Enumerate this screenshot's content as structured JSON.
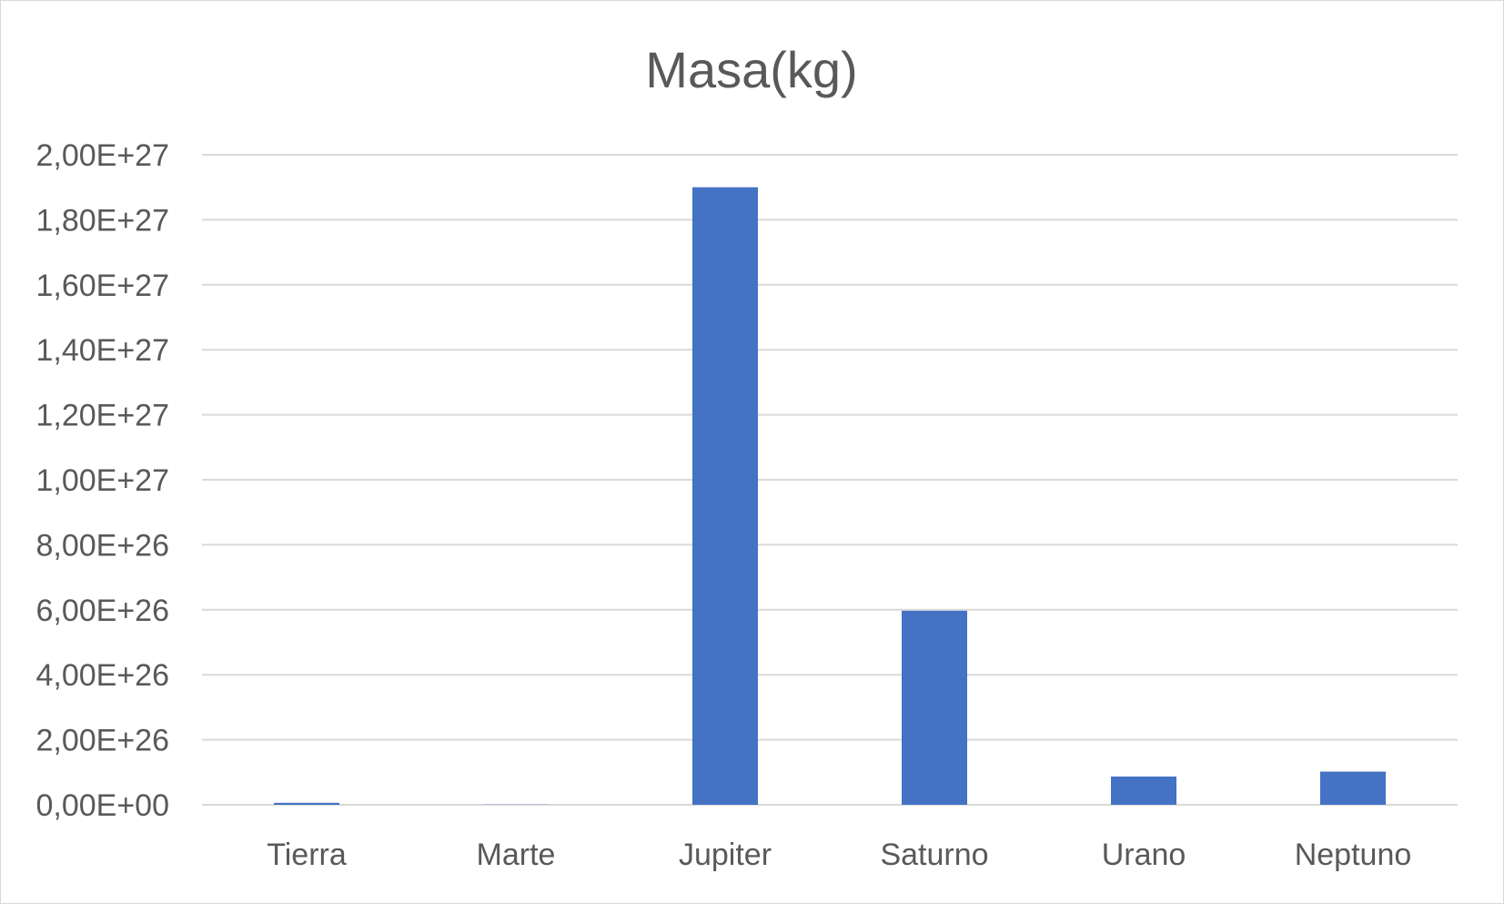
{
  "chart_data": {
    "type": "bar",
    "title": "Masa(kg)",
    "xlabel": "",
    "ylabel": "",
    "categories": [
      "Tierra",
      "Marte",
      "Jupiter",
      "Saturno",
      "Urano",
      "Neptuno"
    ],
    "values": [
      5.97e+24,
      6.42e+23,
      1.9e+27,
      5.97e+26,
      8.68e+25,
      1.02e+26
    ],
    "ylim": [
      0,
      2e+27
    ],
    "yticks": [
      0,
      2e+26,
      4e+26,
      6e+26,
      8e+26,
      1e+27,
      1.2e+27,
      1.4e+27,
      1.6e+27,
      1.8e+27,
      2e+27
    ],
    "ytick_labels": [
      "0,00E+00",
      "2,00E+26",
      "4,00E+26",
      "6,00E+26",
      "8,00E+26",
      "1,00E+27",
      "1,20E+27",
      "1,40E+27",
      "1,60E+27",
      "1,80E+27",
      "2,00E+27"
    ],
    "grid": true,
    "legend": "none",
    "colors": {
      "bar": "#4472c4",
      "grid": "#d9d9d9",
      "text": "#595959",
      "border": "#d9d9d9"
    }
  }
}
